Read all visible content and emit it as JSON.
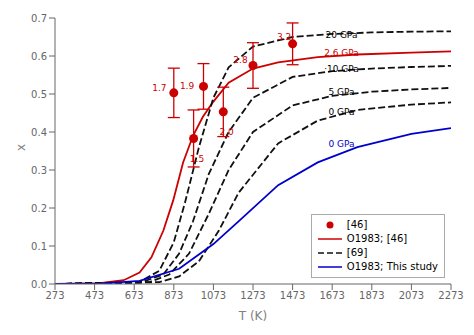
{
  "chart_data": {
    "type": "line",
    "xlabel": "T (K)",
    "ylabel": "x",
    "xlim": [
      273,
      2273
    ],
    "ylim": [
      0.0,
      0.7
    ],
    "xticks": [
      273,
      473,
      673,
      873,
      1073,
      1273,
      1473,
      1673,
      1873,
      2073,
      2273
    ],
    "yticks": [
      {
        "value": 0.0,
        "label": "0.0"
      },
      0.1,
      0.2,
      0.3,
      0.4,
      0.5,
      0.6,
      0.7
    ],
    "grid": false,
    "legend": "lower right",
    "series": [
      {
        "name": "[46]",
        "type": "scatter",
        "marker": "circle",
        "color": "#CC0000",
        "x": [
          873,
          973,
          1023,
          1123,
          1273,
          1473
        ],
        "values": [
          0.503,
          0.383,
          0.52,
          0.453,
          0.575,
          0.632
        ],
        "errors": [
          0.065,
          0.075,
          0.06,
          0.065,
          0.06,
          0.055
        ]
      },
      {
        "name": "O1983; [46]",
        "type": "line",
        "line_style": "solid",
        "color": "#CC0000",
        "x": [
          273,
          500,
          620,
          700,
          760,
          820,
          870,
          920,
          970,
          1020,
          1073,
          1150,
          1273,
          1400,
          1600,
          1800,
          2073,
          2273
        ],
        "values": [
          0.0,
          0.002,
          0.01,
          0.03,
          0.07,
          0.14,
          0.22,
          0.32,
          0.39,
          0.44,
          0.48,
          0.53,
          0.567,
          0.583,
          0.597,
          0.604,
          0.609,
          0.612
        ]
      },
      {
        "name": "[69]",
        "type": "line",
        "line_style": "dashed",
        "color": "#111111",
        "x": [
          273,
          700,
          800,
          873,
          930,
          1000,
          1073,
          1150,
          1273,
          1473,
          1673,
          1873,
          2073,
          2273
        ],
        "values": [
          0.0,
          0.005,
          0.035,
          0.11,
          0.215,
          0.36,
          0.49,
          0.57,
          0.625,
          0.65,
          0.658,
          0.662,
          0.664,
          0.665
        ]
      },
      {
        "name": "[69]",
        "type": "line",
        "line_style": "dashed",
        "color": "#111111",
        "x": [
          273,
          700,
          820,
          900,
          970,
          1050,
          1150,
          1273,
          1473,
          1673,
          1873,
          2073,
          2273
        ],
        "values": [
          0.0,
          0.003,
          0.025,
          0.08,
          0.165,
          0.29,
          0.4,
          0.49,
          0.545,
          0.56,
          0.567,
          0.571,
          0.574
        ]
      },
      {
        "name": "[69]",
        "type": "line",
        "line_style": "dashed",
        "color": "#111111",
        "x": [
          273,
          750,
          850,
          950,
          1050,
          1150,
          1273,
          1473,
          1673,
          1873,
          2073,
          2273
        ],
        "values": [
          0.0,
          0.005,
          0.025,
          0.08,
          0.185,
          0.3,
          0.4,
          0.47,
          0.495,
          0.506,
          0.512,
          0.516
        ]
      },
      {
        "name": "[69]",
        "type": "line",
        "line_style": "dashed",
        "color": "#111111",
        "x": [
          273,
          800,
          900,
          1000,
          1100,
          1200,
          1400,
          1600,
          1800,
          2073,
          2273
        ],
        "values": [
          0.0,
          0.005,
          0.02,
          0.06,
          0.14,
          0.24,
          0.37,
          0.43,
          0.458,
          0.472,
          0.478
        ]
      },
      {
        "name": "O1983; This study",
        "type": "line",
        "line_style": "solid",
        "color": "#0000CC",
        "x": [
          273,
          500,
          700,
          900,
          1073,
          1200,
          1400,
          1600,
          1800,
          2073,
          2273
        ],
        "values": [
          0.0,
          0.001,
          0.008,
          0.04,
          0.105,
          0.165,
          0.26,
          0.32,
          0.36,
          0.395,
          0.41
        ]
      }
    ],
    "annotations": [
      {
        "text": "1.7",
        "x": 800,
        "y": 0.515,
        "color": "#CC0000"
      },
      {
        "text": "1.5",
        "x": 990,
        "y": 0.33,
        "color": "#CC0000"
      },
      {
        "text": "1.9",
        "x": 940,
        "y": 0.52,
        "color": "#CC0000"
      },
      {
        "text": "2.0",
        "x": 1140,
        "y": 0.4,
        "color": "#CC0000"
      },
      {
        "text": "2.8",
        "x": 1210,
        "y": 0.59,
        "color": "#CC0000"
      },
      {
        "text": "3.2",
        "x": 1430,
        "y": 0.65,
        "color": "#CC0000"
      },
      {
        "text": "20 GPa",
        "x": 1720,
        "y": 0.655,
        "color": "black"
      },
      {
        "text": "2.6 GPa",
        "x": 1720,
        "y": 0.607,
        "color": "#CC0000"
      },
      {
        "text": "·10 GPa",
        "x": 1720,
        "y": 0.565,
        "color": "black"
      },
      {
        "text": "5 GPa",
        "x": 1720,
        "y": 0.505,
        "color": "black"
      },
      {
        "text": "0 GPa",
        "x": 1720,
        "y": 0.453,
        "color": "black"
      },
      {
        "text": "0 GPa",
        "x": 1720,
        "y": 0.368,
        "color": "#0000CC"
      }
    ]
  }
}
